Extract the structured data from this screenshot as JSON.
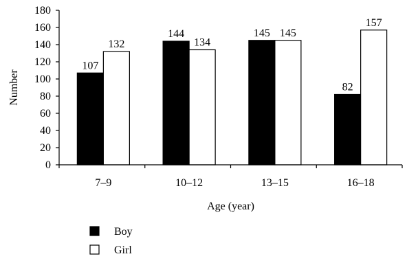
{
  "chart_data": {
    "type": "bar",
    "categories": [
      "7–9",
      "10–12",
      "13–15",
      "16–18"
    ],
    "series": [
      {
        "name": "Boy",
        "values": [
          107,
          144,
          145,
          82
        ],
        "color": "#000000"
      },
      {
        "name": "Girl",
        "values": [
          132,
          134,
          145,
          157
        ],
        "color": "#ffffff"
      }
    ],
    "xlabel": "Age (year)",
    "ylabel": "Number",
    "ylim": [
      0,
      180
    ],
    "yticks": [
      0,
      20,
      40,
      60,
      80,
      100,
      120,
      140,
      160,
      180
    ],
    "grid": false,
    "legend_position": "bottom-left"
  }
}
